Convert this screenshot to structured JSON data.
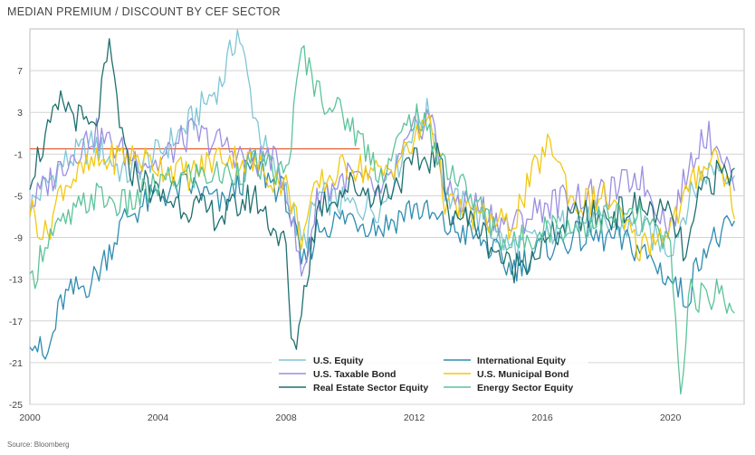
{
  "header": {
    "title": "MEDIAN PREMIUM / DISCOUNT BY CEF SECTOR"
  },
  "footer": {
    "source": "Source: Bloomberg"
  },
  "chart_data": {
    "type": "line",
    "title": "MEDIAN PREMIUM / DISCOUNT BY CEF SECTOR",
    "xlabel": "",
    "ylabel": "",
    "xlim": [
      2000,
      2022.3
    ],
    "ylim": [
      -25,
      11
    ],
    "x_ticks": [
      2000,
      2004,
      2008,
      2012,
      2016,
      2020
    ],
    "y_ticks": [
      7,
      3,
      -1,
      -5,
      -9,
      -13,
      -17,
      -21,
      -25
    ],
    "grid": "horizontal",
    "legend_position": "bottom-center",
    "reference_line": {
      "y": -0.5,
      "color": "#e0542a"
    },
    "series": [
      {
        "name": "U.S. Equity",
        "color": "#7fc6d6",
        "x": [
          2000,
          2001,
          2002,
          2003,
          2004,
          2005,
          2006,
          2006.5,
          2007,
          2007.5,
          2008,
          2008.5,
          2009,
          2010,
          2011,
          2012,
          2012.5,
          2013,
          2014,
          2015,
          2016,
          2017,
          2018,
          2019,
          2020,
          2020.5,
          2021,
          2021.5,
          2022
        ],
        "y": [
          -6,
          -2,
          0,
          -3,
          -1,
          2,
          6,
          11,
          3,
          -2,
          -4,
          -10,
          -5,
          -6,
          -6,
          2,
          3,
          -5,
          -7,
          -10,
          -9,
          -7,
          -8,
          -8,
          -10,
          -6,
          -3,
          -2,
          -3
        ]
      },
      {
        "name": "International Equity",
        "color": "#2e8cb0",
        "x": [
          2000,
          2000.5,
          2001,
          2002,
          2003,
          2004,
          2005,
          2006,
          2007,
          2008,
          2008.5,
          2009,
          2010,
          2011,
          2012,
          2013,
          2014,
          2015,
          2016,
          2017,
          2018,
          2019,
          2020,
          2020.5,
          2021,
          2021.5,
          2022
        ],
        "y": [
          -18,
          -21,
          -15,
          -13,
          -7,
          -5,
          -4,
          -6,
          -2,
          -5,
          -12,
          -8,
          -7,
          -8,
          -6,
          -8,
          -9,
          -12,
          -10,
          -9,
          -9,
          -10,
          -13,
          -15,
          -10,
          -9,
          -8
        ]
      },
      {
        "name": "U.S. Taxable Bond",
        "color": "#9b8fe0",
        "x": [
          2000,
          2001,
          2002,
          2003,
          2004,
          2005,
          2006,
          2007,
          2007.5,
          2008,
          2008.5,
          2009,
          2010,
          2011,
          2012,
          2012.5,
          2013,
          2014,
          2015,
          2016,
          2017,
          2018,
          2019,
          2020,
          2020.5,
          2021,
          2021.5,
          2022
        ],
        "y": [
          -6,
          -2,
          1,
          -1,
          -2,
          1,
          0,
          -2,
          -1,
          -4,
          -13,
          -5,
          -3,
          -5,
          1,
          3,
          -5,
          -6,
          -8,
          -6,
          -5,
          -5,
          -3,
          -8,
          -3,
          1,
          0,
          -4
        ]
      },
      {
        "name": "U.S. Municipal Bond",
        "color": "#f2c80f",
        "x": [
          2000,
          2000.5,
          2001,
          2002,
          2003,
          2004,
          2005,
          2006,
          2007,
          2008,
          2008.5,
          2009,
          2010,
          2011,
          2012,
          2012.5,
          2013,
          2014,
          2015,
          2016,
          2016.3,
          2017,
          2018,
          2019,
          2020,
          2020.5,
          2021,
          2021.5,
          2022
        ],
        "y": [
          -6,
          -9,
          -4,
          -2,
          -1,
          -2,
          -3,
          -1,
          -2,
          -4,
          -9,
          -4,
          -2,
          -3,
          0,
          3,
          -6,
          -7,
          -8,
          -1,
          0,
          -6,
          -5,
          -10,
          -8,
          -5,
          -2,
          -1,
          -6
        ]
      },
      {
        "name": "Real Estate Sector Equity",
        "color": "#1f6f6f",
        "x": [
          2000,
          2001,
          2002,
          2002.5,
          2003,
          2004,
          2005,
          2006,
          2007,
          2008,
          2008.2,
          2009,
          2010,
          2011,
          2012,
          2012.8,
          2013,
          2014,
          2015,
          2016,
          2017,
          2018,
          2019,
          2020,
          2020.5,
          2021,
          2021.5,
          2022
        ],
        "y": [
          -3,
          4,
          1,
          9,
          -2,
          -5,
          -6,
          -7,
          -5,
          -10,
          -21,
          -6,
          -4,
          -5,
          -2,
          -1,
          -6,
          -8,
          -12,
          -10,
          -7,
          -7,
          -6,
          -7,
          -11,
          -4,
          -3,
          -3
        ]
      },
      {
        "name": "Energy Sector Equity",
        "color": "#5cc39a",
        "x": [
          2000,
          2000.5,
          2001,
          2002,
          2003,
          2004,
          2005,
          2006,
          2007,
          2008,
          2008.5,
          2009,
          2010,
          2011,
          2012,
          2013,
          2014,
          2015,
          2016,
          2017,
          2018,
          2019,
          2020,
          2020.3,
          2020.6,
          2021,
          2021.5,
          2022
        ],
        "y": [
          -14,
          -9,
          -8,
          -5,
          -6,
          -4,
          -3,
          -3,
          -2,
          -3,
          9,
          5,
          2,
          -3,
          3,
          -2,
          -6,
          -10,
          -8,
          -8,
          -7,
          -7,
          -10,
          -24,
          -14,
          -15,
          -14,
          -16
        ]
      }
    ]
  }
}
